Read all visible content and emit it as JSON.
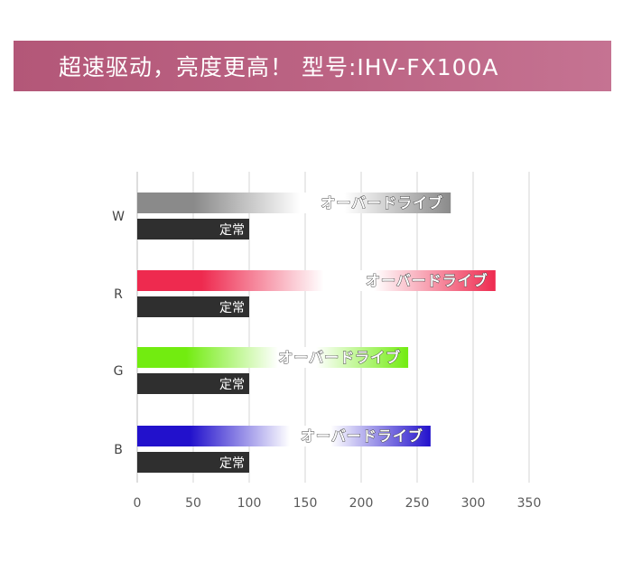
{
  "header": {
    "title": "超速驱动，亮度更高！ 型号:IHV-FX100A"
  },
  "chart_data": {
    "type": "bar",
    "orientation": "horizontal",
    "categories": [
      "W",
      "R",
      "G",
      "B"
    ],
    "series": [
      {
        "name": "オーバードライブ",
        "values": [
          280,
          320,
          242,
          262
        ]
      },
      {
        "name": "定常",
        "values": [
          100,
          100,
          100,
          100
        ]
      }
    ],
    "series_colors": {
      "overdrive": {
        "W": "#8a8a8a",
        "R": "#ee2a4f",
        "G": "#72ec10",
        "B": "#2211cc"
      },
      "normal": "#2f2f2f"
    },
    "xticks": [
      0,
      50,
      100,
      150,
      200,
      250,
      300,
      350
    ],
    "xlim": [
      0,
      350
    ],
    "grid": "vertical",
    "xlabel": "",
    "ylabel": ""
  }
}
